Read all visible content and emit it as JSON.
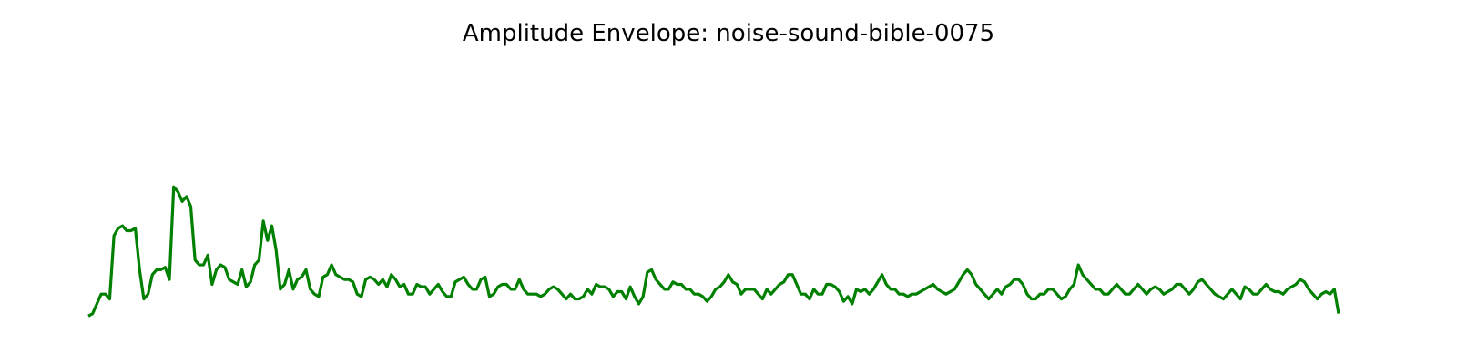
{
  "chart_data": {
    "type": "line",
    "title": "Amplitude Envelope: noise-sound-bible-0075",
    "xlabel": "",
    "ylabel": "",
    "axes_visible": false,
    "grid": false,
    "xlim": [
      0,
      275
    ],
    "ylim": [
      0,
      100
    ],
    "series": [
      {
        "color": "#008000",
        "values": [
          1,
          2,
          6,
          10,
          10,
          8,
          34,
          37,
          38,
          36,
          36,
          37,
          20,
          8,
          10,
          18,
          20,
          20,
          21,
          16,
          54,
          52,
          48,
          50,
          46,
          24,
          22,
          22,
          26,
          14,
          20,
          22,
          21,
          16,
          15,
          14,
          20,
          13,
          15,
          22,
          24,
          40,
          32,
          38,
          28,
          12,
          14,
          20,
          12,
          16,
          17,
          20,
          12,
          10,
          9,
          17,
          18,
          22,
          18,
          17,
          16,
          16,
          15,
          10,
          9,
          16,
          17,
          16,
          14,
          16,
          13,
          18,
          16,
          13,
          14,
          10,
          10,
          14,
          13,
          13,
          10,
          12,
          14,
          11,
          9,
          9,
          15,
          16,
          17,
          14,
          12,
          12,
          16,
          17,
          9,
          10,
          13,
          14,
          14,
          12,
          12,
          16,
          12,
          10,
          10,
          10,
          9,
          10,
          12,
          13,
          12,
          10,
          8,
          10,
          8,
          8,
          9,
          12,
          10,
          14,
          13,
          13,
          12,
          9,
          11,
          11,
          8,
          13,
          9,
          6,
          9,
          19,
          20,
          16,
          14,
          12,
          12,
          15,
          14,
          14,
          12,
          12,
          10,
          10,
          9,
          7,
          9,
          12,
          13,
          15,
          18,
          15,
          14,
          10,
          12,
          12,
          12,
          10,
          8,
          12,
          10,
          12,
          14,
          15,
          18,
          18,
          14,
          10,
          10,
          8,
          12,
          10,
          10,
          14,
          14,
          13,
          11,
          7,
          9,
          6,
          12,
          11,
          12,
          10,
          12,
          15,
          18,
          14,
          12,
          12,
          10,
          10,
          9,
          10,
          10,
          11,
          12,
          13,
          14,
          12,
          11,
          10,
          11,
          12,
          15,
          18,
          20,
          18,
          14,
          12,
          10,
          8,
          10,
          12,
          10,
          13,
          14,
          16,
          16,
          14,
          10,
          8,
          8,
          10,
          10,
          12,
          12,
          10,
          8,
          9,
          12,
          14,
          22,
          18,
          16,
          14,
          12,
          12,
          10,
          10,
          12,
          14,
          12,
          10,
          10,
          12,
          14,
          12,
          10,
          12,
          13,
          12,
          10,
          11,
          12,
          14,
          14,
          12,
          10,
          12,
          15,
          16,
          14,
          12,
          10,
          9,
          8,
          10,
          12,
          10,
          8,
          13,
          12,
          10,
          10,
          12,
          14,
          12,
          11,
          11,
          10,
          12,
          13,
          14,
          16,
          15,
          12,
          10,
          8,
          10,
          11,
          10,
          12,
          2
        ]
      }
    ]
  }
}
